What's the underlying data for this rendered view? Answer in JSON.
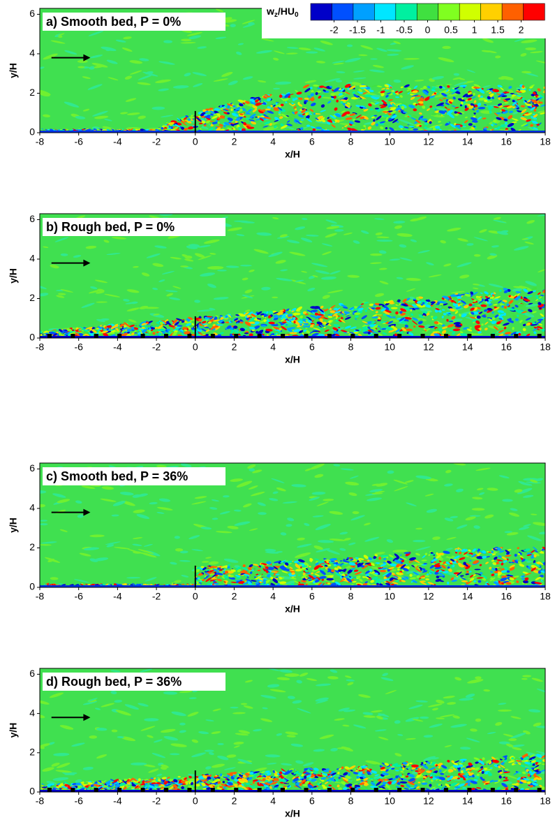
{
  "chart_data": [
    {
      "type": "contour",
      "title": "a) Smooth bed, P = 0%",
      "xlabel": "x/H",
      "ylabel": "y/H",
      "xlim": [
        -8,
        18
      ],
      "ylim": [
        0,
        6.3
      ],
      "xticks": [
        -8,
        -6,
        -4,
        -2,
        0,
        2,
        4,
        6,
        8,
        10,
        12,
        14,
        16,
        18
      ],
      "yticks": [
        0,
        2,
        4,
        6
      ],
      "colorbar": {
        "label": [
          "w",
          "z",
          "/HU",
          "0"
        ],
        "clim": [
          -2.5,
          2.5
        ],
        "colors": [
          "#0000c8",
          "#0050ff",
          "#00a0ff",
          "#00e6ff",
          "#00f0a0",
          "#40e040",
          "#80ff20",
          "#d0ff00",
          "#ffd000",
          "#ff6000",
          "#ff0000"
        ],
        "ticks": [
          -2,
          -1.5,
          -1,
          -0.5,
          0,
          0.5,
          1,
          1.5,
          2
        ]
      }
    },
    {
      "type": "contour",
      "title": "b) Rough bed, P = 0%",
      "xlabel": "x/H",
      "ylabel": "y/H",
      "xlim": [
        -8,
        18
      ],
      "ylim": [
        0,
        6.3
      ],
      "xticks": [
        -8,
        -6,
        -4,
        -2,
        0,
        2,
        4,
        6,
        8,
        10,
        12,
        14,
        16,
        18
      ],
      "yticks": [
        0,
        2,
        4,
        6
      ]
    },
    {
      "type": "contour",
      "title": "c) Smooth bed, P = 36%",
      "xlabel": "x/H",
      "ylabel": "y/H",
      "xlim": [
        -8,
        18
      ],
      "ylim": [
        0,
        6.3
      ],
      "xticks": [
        -8,
        -6,
        -4,
        -2,
        0,
        2,
        4,
        6,
        8,
        10,
        12,
        14,
        16,
        18
      ],
      "yticks": [
        0,
        2,
        4,
        6
      ]
    },
    {
      "type": "contour",
      "title": "d) Rough bed, P = 36%",
      "xlabel": "x/H",
      "ylabel": "y/H",
      "xlim": [
        -8,
        18
      ],
      "ylim": [
        0,
        6.3
      ],
      "xticks": [
        -8,
        -6,
        -4,
        -2,
        0,
        2,
        4,
        6,
        8,
        10,
        12,
        14,
        16,
        18
      ],
      "yticks": [
        0,
        2,
        4,
        6
      ]
    }
  ]
}
